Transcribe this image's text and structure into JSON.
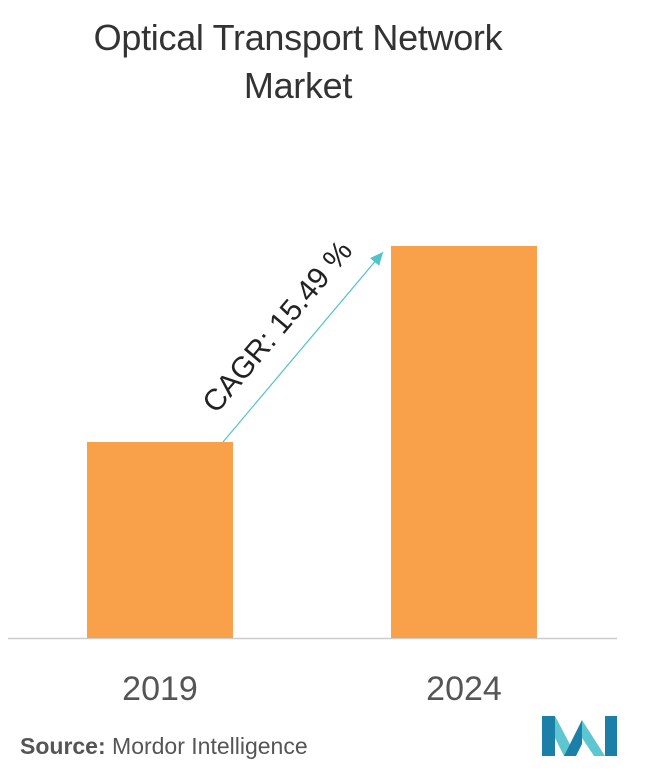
{
  "chart_data": {
    "type": "bar",
    "title": "Optical Transport Network Market",
    "categories": [
      "2019",
      "2024"
    ],
    "values": [
      1.0,
      2.0
    ],
    "annotation": "CAGR: 15.49 %",
    "colors": {
      "bar": "#F9A04B",
      "arrow": "#4FC3CB",
      "axis": "#CCCCCC"
    },
    "grid": false,
    "legend": "none"
  },
  "title_lines": [
    "Optical Transport Network",
    "Market"
  ],
  "source": {
    "label": "Source:",
    "text": " Mordor Intelligence"
  },
  "logo": {
    "icon": "mordor-intelligence-logo",
    "colors": [
      "#1B7FA8",
      "#5CC7D0"
    ]
  }
}
